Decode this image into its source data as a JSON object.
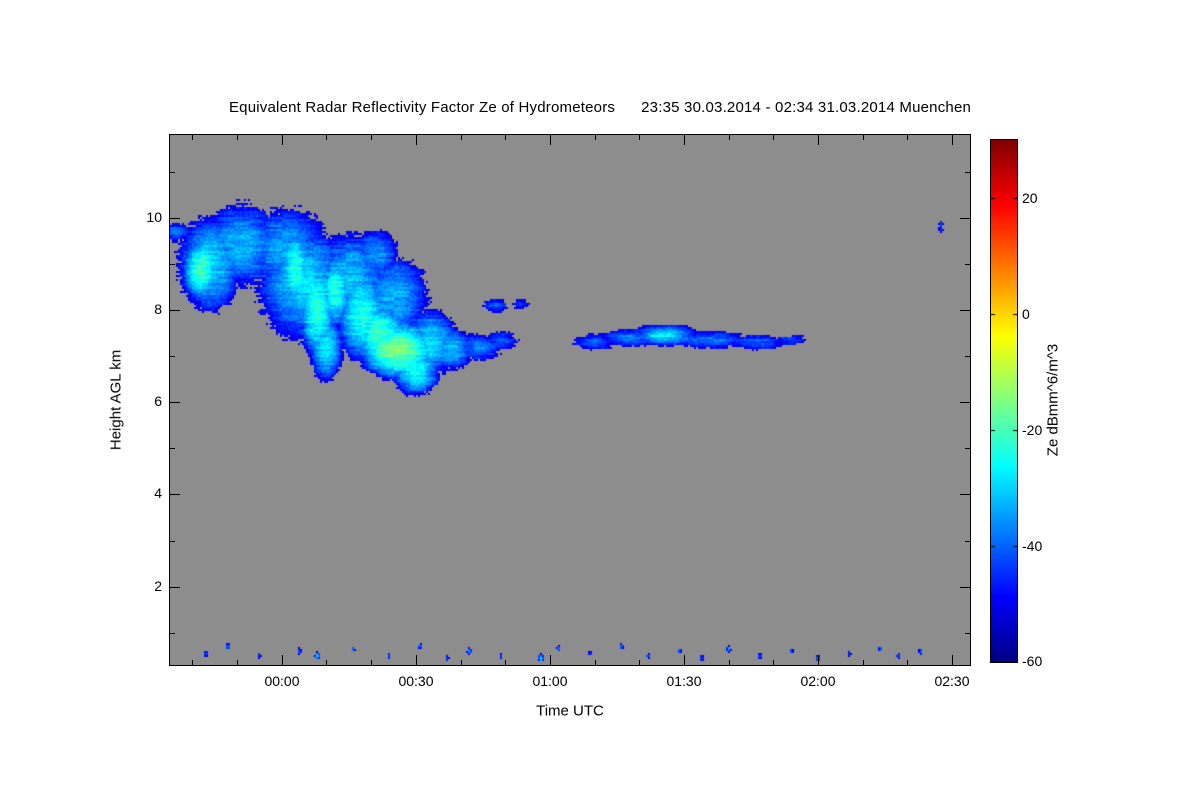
{
  "title": "Equivalent Radar Reflectivity Factor Ze of Hydrometeors",
  "subtitle": "23:35 30.03.2014 - 02:34 31.03.2014 Muenchen",
  "colors": {
    "page_bg": "#ffffff",
    "plot_bg": "#8d8d8d",
    "axis": "#000000",
    "text": "#000000"
  },
  "chart_data": {
    "type": "heatmap",
    "title": "Equivalent Radar Reflectivity Factor Ze of Hydrometeors",
    "time_start": "23:35 30.03.2014",
    "time_end": "02:34 31.03.2014",
    "station": "Muenchen",
    "xlabel": "Time UTC",
    "ylabel": "Height AGL km",
    "x_ticks": [
      "00:00",
      "00:30",
      "01:00",
      "01:30",
      "02:00",
      "02:30"
    ],
    "x_tick_minutes": [
      25,
      55,
      85,
      115,
      145,
      175
    ],
    "x_range_minutes": [
      0,
      179
    ],
    "y_ticks": [
      2,
      4,
      6,
      8,
      10
    ],
    "y_range_km": [
      0.3,
      11.8
    ],
    "grid": false,
    "colorbar": {
      "label": "Ze dBmm^6/m^3",
      "min": -60,
      "max": 30,
      "ticks": [
        20,
        0,
        -20,
        -40,
        -60
      ],
      "colormap": "jet",
      "position": "right"
    },
    "threshold_db": -52,
    "noise_db": 5,
    "echo_regions": [
      {
        "t": 1.5,
        "h": 9.7,
        "rt": 4,
        "rh": 0.28,
        "db": -40
      },
      {
        "t": 9,
        "h": 9.0,
        "rt": 7,
        "rh": 1.0,
        "db": -30
      },
      {
        "t": 7,
        "h": 8.9,
        "rt": 3.5,
        "rh": 0.6,
        "db": -20
      },
      {
        "t": 16,
        "h": 9.4,
        "rt": 9,
        "rh": 0.95,
        "db": -33
      },
      {
        "t": 26,
        "h": 9.3,
        "rt": 10,
        "rh": 1.0,
        "db": -34
      },
      {
        "t": 30,
        "h": 8.6,
        "rt": 10,
        "rh": 1.2,
        "db": -30
      },
      {
        "t": 28,
        "h": 8.9,
        "rt": 3,
        "rh": 0.8,
        "db": -23
      },
      {
        "t": 33,
        "h": 8.0,
        "rt": 3.5,
        "rh": 0.9,
        "db": -22
      },
      {
        "t": 37,
        "h": 8.4,
        "rt": 3,
        "rh": 0.7,
        "db": -23
      },
      {
        "t": 40,
        "h": 8.7,
        "rt": 9,
        "rh": 1.0,
        "db": -32
      },
      {
        "t": 46,
        "h": 9.2,
        "rt": 6,
        "rh": 0.6,
        "db": -36
      },
      {
        "t": 43,
        "h": 7.9,
        "rt": 5,
        "rh": 0.9,
        "db": -24
      },
      {
        "t": 35,
        "h": 7.2,
        "rt": 3.5,
        "rh": 0.7,
        "db": -28
      },
      {
        "t": 50,
        "h": 8.3,
        "rt": 8,
        "rh": 0.9,
        "db": -33
      },
      {
        "t": 47,
        "h": 7.5,
        "rt": 5,
        "rh": 0.55,
        "db": -20
      },
      {
        "t": 51,
        "h": 7.15,
        "rt": 7,
        "rh": 0.5,
        "db": -15
      },
      {
        "t": 55,
        "h": 6.7,
        "rt": 5,
        "rh": 0.5,
        "db": -26
      },
      {
        "t": 58,
        "h": 7.3,
        "rt": 6,
        "rh": 0.7,
        "db": -30
      },
      {
        "t": 63,
        "h": 7.15,
        "rt": 5,
        "rh": 0.45,
        "db": -32
      },
      {
        "t": 69,
        "h": 7.2,
        "rt": 6,
        "rh": 0.35,
        "db": -38
      },
      {
        "t": 74,
        "h": 7.35,
        "rt": 5,
        "rh": 0.3,
        "db": -42
      },
      {
        "t": 73,
        "h": 8.1,
        "rt": 3.5,
        "rh": 0.22,
        "db": -42
      },
      {
        "t": 78.5,
        "h": 8.15,
        "rt": 2.5,
        "rh": 0.18,
        "db": -44
      },
      {
        "t": 95,
        "h": 7.3,
        "rt": 6,
        "rh": 0.22,
        "db": -40
      },
      {
        "t": 103,
        "h": 7.4,
        "rt": 8,
        "rh": 0.22,
        "db": -38
      },
      {
        "t": 111,
        "h": 7.45,
        "rt": 8,
        "rh": 0.25,
        "db": -33
      },
      {
        "t": 110,
        "h": 7.45,
        "rt": 5,
        "rh": 0.12,
        "db": -25
      },
      {
        "t": 121,
        "h": 7.35,
        "rt": 9,
        "rh": 0.22,
        "db": -38
      },
      {
        "t": 131,
        "h": 7.3,
        "rt": 8,
        "rh": 0.2,
        "db": -40
      },
      {
        "t": 139,
        "h": 7.35,
        "rt": 5,
        "rh": 0.16,
        "db": -43
      },
      {
        "t": 172.5,
        "h": 9.8,
        "rt": 0.8,
        "rh": 0.2,
        "db": -44
      }
    ],
    "speckles": [
      [
        8,
        0.55,
        -40
      ],
      [
        13,
        0.7,
        -36
      ],
      [
        20,
        0.5,
        -42
      ],
      [
        29,
        0.6,
        -38
      ],
      [
        33,
        0.5,
        -30
      ],
      [
        41,
        0.65,
        -40
      ],
      [
        49,
        0.5,
        -42
      ],
      [
        56,
        0.7,
        -38
      ],
      [
        62,
        0.45,
        -41
      ],
      [
        67,
        0.6,
        -36
      ],
      [
        74,
        0.5,
        -42
      ],
      [
        83,
        0.45,
        -28
      ],
      [
        87,
        0.65,
        -40
      ],
      [
        94,
        0.55,
        -42
      ],
      [
        101,
        0.7,
        -38
      ],
      [
        107,
        0.5,
        -41
      ],
      [
        114,
        0.6,
        -39
      ],
      [
        119,
        0.45,
        -42
      ],
      [
        125,
        0.65,
        -37
      ],
      [
        132,
        0.5,
        -40
      ],
      [
        139,
        0.6,
        -42
      ],
      [
        145,
        0.45,
        -38
      ],
      [
        152,
        0.55,
        -41
      ],
      [
        159,
        0.65,
        -39
      ],
      [
        163,
        0.5,
        -42
      ],
      [
        168,
        0.6,
        -40
      ]
    ]
  }
}
